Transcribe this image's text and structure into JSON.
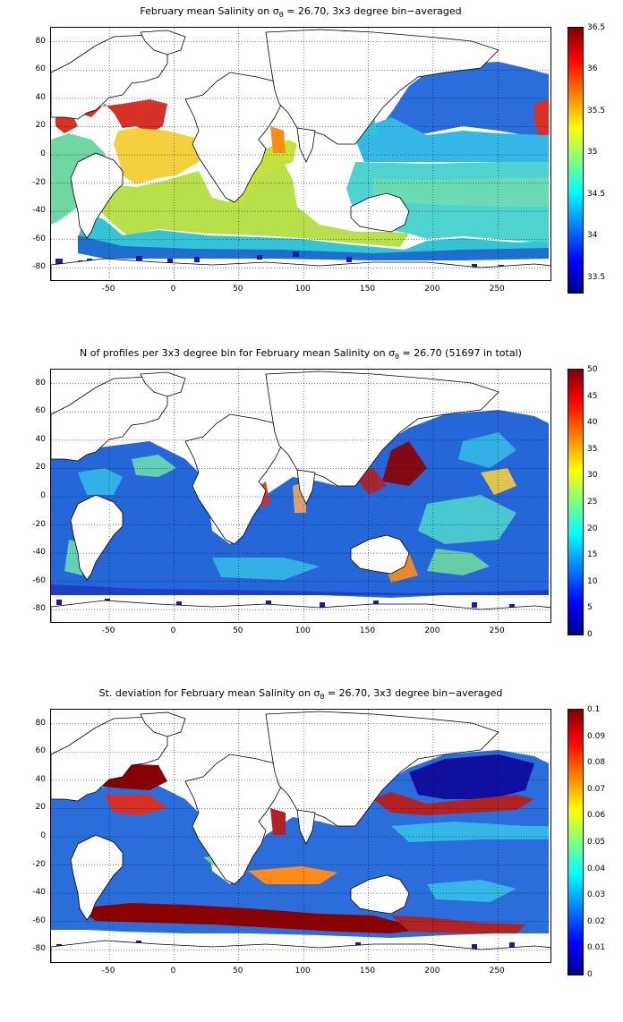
{
  "panels": [
    {
      "title_main": "February mean Salinity on σ",
      "title_sub": "θ",
      "title_tail": " = 26.70, 3x3 degree bin−averaged",
      "colorbar_ticks": [
        "36.5",
        "36",
        "35.5",
        "35",
        "34.5",
        "34",
        "33.5"
      ],
      "colorbar_range": [
        33.3,
        36.5
      ]
    },
    {
      "title_main": "N of profiles per 3x3 degree bin for February mean Salinity on σ",
      "title_sub": "θ",
      "title_tail": " = 26.70 (51697 in total)",
      "colorbar_ticks": [
        "50",
        "45",
        "40",
        "35",
        "30",
        "25",
        "20",
        "15",
        "10",
        "5",
        "0"
      ],
      "colorbar_range": [
        0,
        50
      ]
    },
    {
      "title_main": "St. deviation for February mean Salinity on σ",
      "title_sub": "θ",
      "title_tail": " = 26.70, 3x3 degree bin−averaged",
      "colorbar_ticks": [
        "0.1",
        "0.09",
        "0.08",
        "0.07",
        "0.06",
        "0.05",
        "0.04",
        "0.03",
        "0.02",
        "0.01",
        "0"
      ],
      "colorbar_range": [
        0,
        0.1
      ]
    }
  ],
  "axes": {
    "x_ticks": [
      "-50",
      "0",
      "50",
      "100",
      "150",
      "200",
      "250"
    ],
    "y_ticks": [
      "80",
      "60",
      "40",
      "20",
      "0",
      "-20",
      "-40",
      "-60",
      "-80"
    ],
    "x_range": [
      -95,
      292
    ],
    "y_range": [
      -90,
      90
    ]
  },
  "colormap": "jet",
  "grid": "dotted"
}
